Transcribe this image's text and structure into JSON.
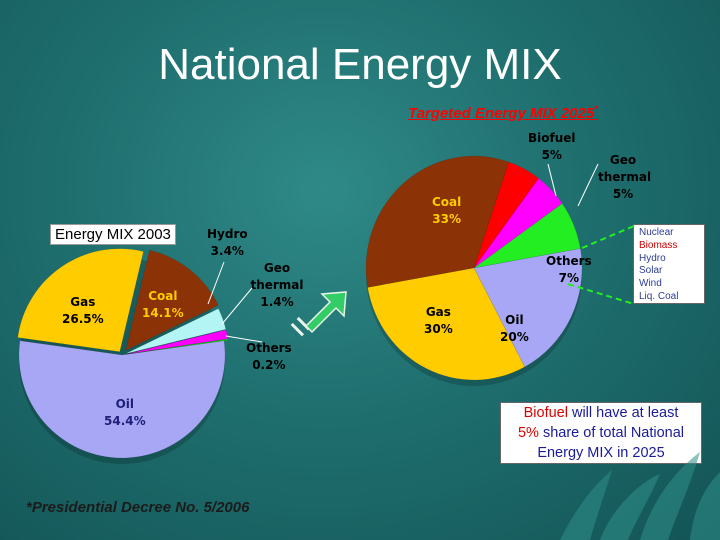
{
  "page": {
    "title": "National Energy MIX",
    "footnote": "*Presidential Decree No. 5/2006"
  },
  "note": {
    "part1": "Biofuel",
    "part2": " will have at least",
    "part3": "5%",
    "part4": " share of total National",
    "part5": "Energy MIX  in  2025"
  },
  "others_legend": {
    "items": [
      {
        "label": "Nuclear",
        "color": "#2f3c9a"
      },
      {
        "label": "Biomass",
        "color": "#cc0000"
      },
      {
        "label": "Hydro",
        "color": "#2f3c9a"
      },
      {
        "label": "Solar",
        "color": "#2f3c9a"
      },
      {
        "label": "Wind",
        "color": "#2f3c9a"
      },
      {
        "label": "Liq. Coal",
        "color": "#2f3c9a"
      }
    ]
  },
  "chart_data": [
    {
      "type": "pie",
      "title": "Energy MIX  2003",
      "slices": [
        {
          "name": "Oil",
          "value": 54.4,
          "value_label": "54.4%",
          "color": "#a7a7f5",
          "label_color": "#1f1f7a"
        },
        {
          "name": "Gas",
          "value": 26.5,
          "value_label": "26.5%",
          "color": "#ffcc00",
          "label_color": "#000000"
        },
        {
          "name": "Coal",
          "value": 14.1,
          "value_label": "14.1%",
          "color": "#8b3306",
          "label_color": "#ffcc00"
        },
        {
          "name": "Hydro",
          "value": 3.4,
          "value_label": "3.4%",
          "color": "#b3f4f4",
          "label_color": "#000000"
        },
        {
          "name": "Geo thermal",
          "value": 1.4,
          "value_label": "1.4%",
          "color": "#ff00ff",
          "label_color": "#000000"
        },
        {
          "name": "Others",
          "value": 0.2,
          "value_label": "0.2%",
          "color": "#22cc22",
          "label_color": "#ffffff"
        }
      ]
    },
    {
      "type": "pie",
      "title": "Targeted Energy MIX 2025",
      "title_sup": "*",
      "slices": [
        {
          "name": "Coal",
          "value": 33,
          "value_label": "33%",
          "color": "#8b3306",
          "label_color": "#ffcc00"
        },
        {
          "name": "Biofuel",
          "value": 5,
          "value_label": "5%",
          "color": "#ff0000",
          "label_color": "#000000"
        },
        {
          "name": "Geo thermal",
          "value": 5,
          "value_label": "5%",
          "color": "#ff00ff",
          "label_color": "#000000"
        },
        {
          "name": "Others",
          "value": 7,
          "value_label": "7%",
          "color": "#22ee22",
          "label_color": "#000000"
        },
        {
          "name": "Oil",
          "value": 20,
          "value_label": "20%",
          "color": "#a7a7f5",
          "label_color": "#000000"
        },
        {
          "name": "Gas",
          "value": 30,
          "value_label": "30%",
          "color": "#ffcc00",
          "label_color": "#000000"
        }
      ]
    }
  ]
}
